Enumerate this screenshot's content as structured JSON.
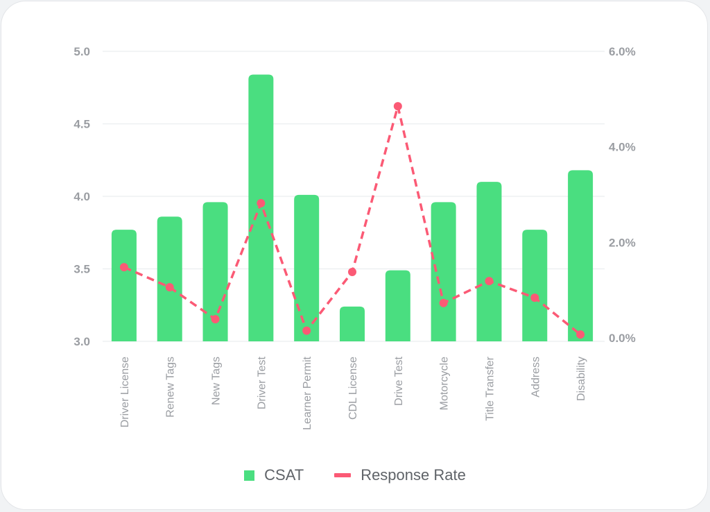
{
  "chart_data": {
    "type": "bar",
    "title": "",
    "categories": [
      "Driver License",
      "Renew Tags",
      "New Tags",
      "Driver Test",
      "Learner Permit",
      "CDL License",
      "Drive Test",
      "Motorcycle",
      "Title Transfer",
      "Address",
      "Disability"
    ],
    "series": [
      {
        "name": "CSAT",
        "type": "bar",
        "axis": "left",
        "color": "#4ade80",
        "values": [
          3.77,
          3.86,
          3.96,
          4.84,
          4.01,
          3.24,
          3.49,
          3.96,
          4.1,
          3.77,
          4.18
        ]
      },
      {
        "name": "Response Rate",
        "type": "line",
        "axis": "right",
        "color": "#fb5a75",
        "dashed": true,
        "values": [
          1.48,
          1.06,
          0.39,
          2.82,
          0.15,
          1.38,
          4.85,
          0.73,
          1.19,
          0.84,
          0.07
        ]
      }
    ],
    "y_left": {
      "range": [
        3.0,
        5.0
      ],
      "ticks": [
        "3.0",
        "3.5",
        "4.0",
        "4.5",
        "5.0"
      ],
      "tick_values": [
        3.0,
        3.5,
        4.0,
        4.5,
        5.0
      ]
    },
    "y_right": {
      "range": [
        0,
        6.0
      ],
      "unit": "%",
      "ticks": [
        "0.0%",
        "2.0%",
        "4.0%",
        "6.0%"
      ],
      "tick_values": [
        0,
        2,
        4,
        6
      ]
    },
    "xlabel": "",
    "ylabel": "",
    "grid": true,
    "legend": {
      "position": "bottom",
      "entries": [
        "CSAT",
        "Response Rate"
      ]
    }
  }
}
